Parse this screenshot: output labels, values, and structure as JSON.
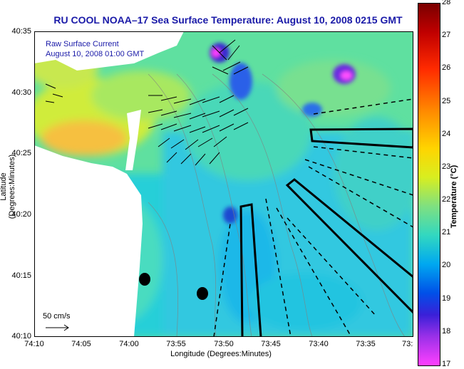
{
  "title": "RU COOL  NOAA–17  Sea Surface Temperature:  August 10, 2008 0215 GMT",
  "legend": {
    "line1": "Raw Surface Current",
    "line2": "August 10, 2008 01:00 GMT"
  },
  "scale": {
    "label": "50 cm/s"
  },
  "axes": {
    "xlabel": "Longitude (Degrees:Minutes)",
    "ylabel": "Latitude (Degrees:Minutes)",
    "xticks": [
      "74:10",
      "74:05",
      "74:00",
      "73:55",
      "73:50",
      "73:45",
      "73:40",
      "73:35",
      "73:3"
    ],
    "yticks": [
      "40:35",
      "40:30",
      "40:25",
      "40:20",
      "40:15",
      "40:10"
    ]
  },
  "colorbar": {
    "label": "Temperature (°C)",
    "ticks": [
      "28",
      "27",
      "26",
      "25",
      "24",
      "23",
      "22",
      "21",
      "20",
      "19",
      "18",
      "17"
    ],
    "min": 17,
    "max": 28
  }
}
